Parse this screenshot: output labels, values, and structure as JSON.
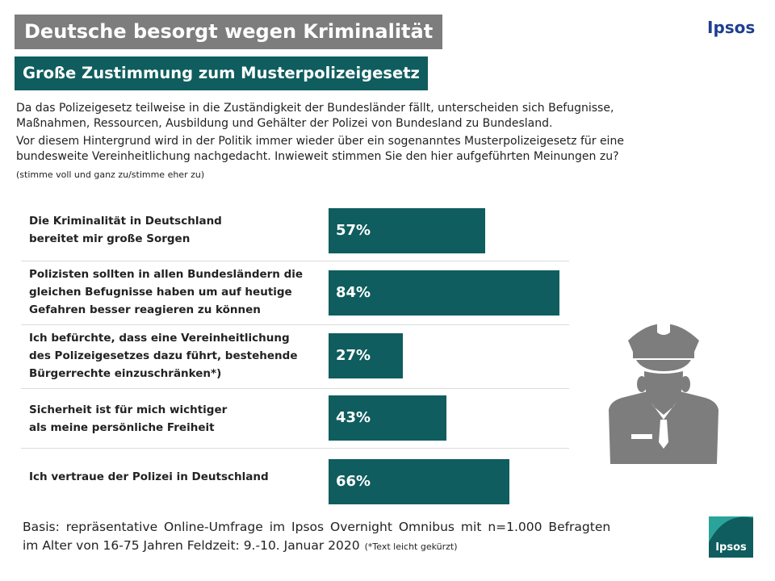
{
  "header": {
    "title": "Deutsche besorgt wegen Kriminalität",
    "subtitle": "Große Zustimmung zum Musterpolizeigesetz",
    "brand": "Ipsos"
  },
  "intro": {
    "paragraph1_line1": "Da das Polizeigesetz teilweise in die Zuständigkeit der Bundesländer fällt, unterscheiden sich Befugnisse,",
    "paragraph1_line2": "Maßnahmen, Ressourcen, Ausbildung und Gehälter der Polizei von Bundesland zu Bundesland.",
    "paragraph2_line1": "Vor diesem Hintergrund wird in der Politik immer wieder über ein sogenanntes Musterpolizeigesetz für eine",
    "paragraph2_line2": "bundesweite Vereinheitlichung nachgedacht. Inwieweit stimmen Sie den hier aufgeführten Meinungen zu?",
    "note": "(stimme voll und ganz zu/stimme eher zu)"
  },
  "chart_data": {
    "type": "bar",
    "orientation": "horizontal",
    "categories": [
      [
        "Die Kriminalität in Deutschland",
        "bereitet mir große Sorgen"
      ],
      [
        "Polizisten sollten in allen Bundesländern die",
        "gleichen Befugnisse haben um auf heutige",
        "Gefahren besser reagieren zu können"
      ],
      [
        "Ich befürchte, dass eine Vereinheitlichung",
        "des Polizeigesetzes dazu führt, bestehende",
        "Bürgerrechte einzuschränken*)"
      ],
      [
        "Sicherheit ist für mich wichtiger",
        "als meine persönliche Freiheit"
      ],
      [
        "Ich vertraue der Polizei in Deutschland"
      ]
    ],
    "values": [
      57,
      84,
      27,
      43,
      66
    ],
    "value_labels": [
      "57%",
      "84%",
      "27%",
      "43%",
      "66%"
    ],
    "xlim": [
      0,
      100
    ],
    "bar_color": "#0f5d5e",
    "grid": false
  },
  "footer": {
    "line1": "Basis: repräsentative Online-Umfrage im Ipsos Overnight Omnibus mit n=1.000 Befragten",
    "line2": "im Alter von 16-75 Jahren  Feldzeit: 9.-10. Januar 2020",
    "footnote": "(*Text leicht gekürzt)"
  },
  "logo": {
    "text": "Ipsos",
    "icon": "ipsos-logo-icon"
  },
  "illustration": {
    "icon": "police-officer-icon"
  },
  "colors": {
    "accent": "#0f5d5e",
    "title_bg": "#7d7d7d",
    "brand_text": "#1f3f8f",
    "icon_gray": "#7d7d7d"
  }
}
